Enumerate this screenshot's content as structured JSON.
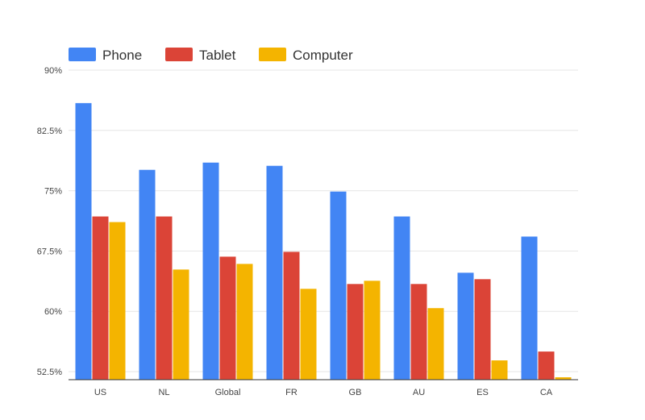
{
  "chart_data": {
    "type": "bar",
    "categories": [
      "US",
      "NL",
      "Global",
      "FR",
      "GB",
      "AU",
      "ES",
      "CA"
    ],
    "series": [
      {
        "name": "Phone",
        "color": "#4285f4",
        "values": [
          85.9,
          77.6,
          78.5,
          78.1,
          74.9,
          71.8,
          64.8,
          69.3
        ]
      },
      {
        "name": "Tablet",
        "color": "#db4437",
        "values": [
          71.8,
          71.8,
          66.8,
          67.4,
          63.4,
          63.4,
          64.0,
          55.0
        ]
      },
      {
        "name": "Computer",
        "color": "#f4b400",
        "values": [
          71.1,
          65.2,
          65.9,
          62.8,
          63.8,
          60.4,
          53.9,
          51.8
        ]
      }
    ],
    "ylim": [
      51.5,
      90
    ],
    "yticks": [
      52.5,
      60,
      67.5,
      75,
      82.5,
      90
    ],
    "ytick_labels": [
      "52.5%",
      "60%",
      "67.5%",
      "75%",
      "82.5%",
      "90%"
    ],
    "grid": true,
    "legend_position": "top-left",
    "title": "",
    "xlabel": "",
    "ylabel": ""
  }
}
